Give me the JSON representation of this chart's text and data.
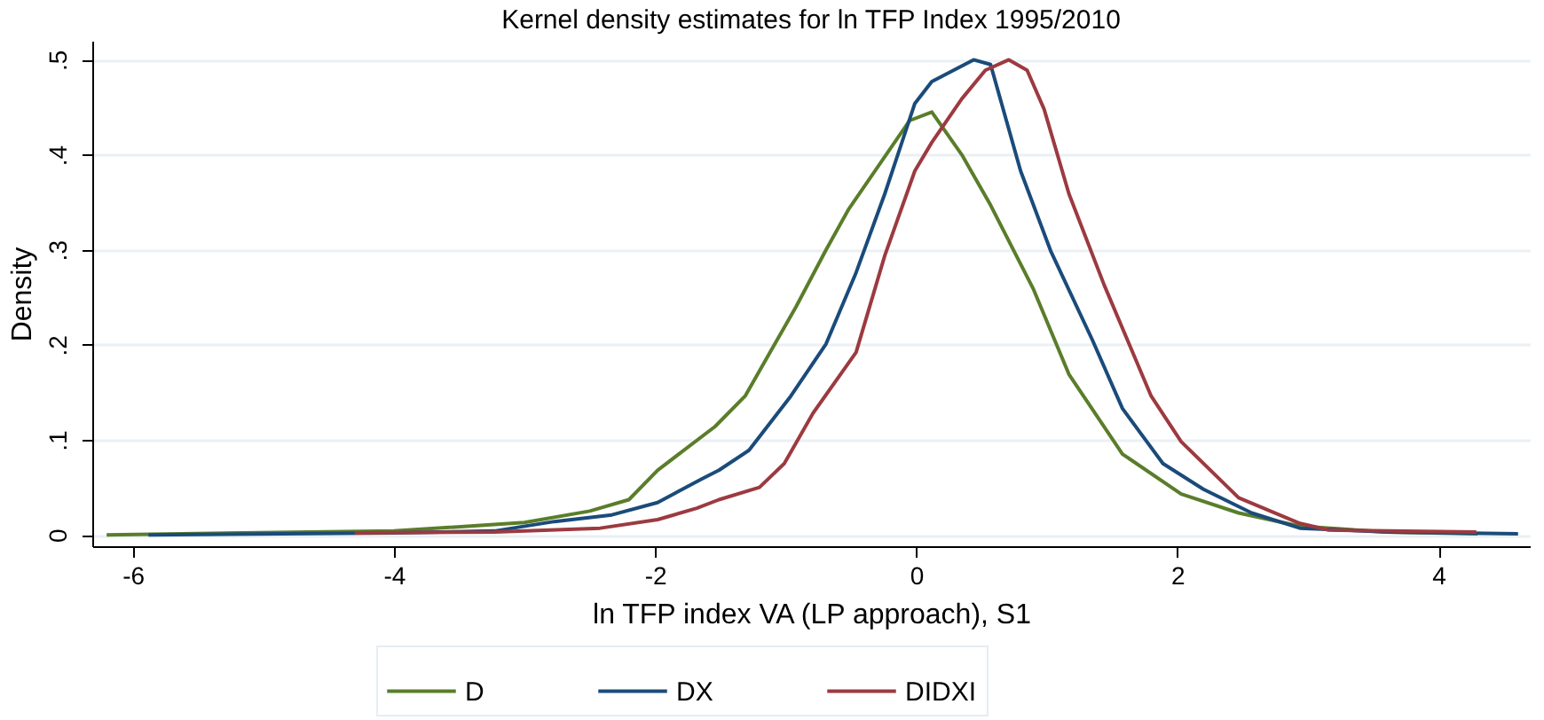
{
  "chart_data": {
    "type": "line",
    "title": "Kernel density estimates for ln TFP Index 1995/2010",
    "xlabel": "ln TFP index VA (LP approach), S1",
    "ylabel": "Density",
    "xlim": [
      -6.31,
      4.7
    ],
    "ylim": [
      -0.012,
      0.52
    ],
    "xticks": [
      -6,
      -4,
      -2,
      0,
      2,
      4
    ],
    "yticks": [
      {
        "value": 0,
        "label": "0"
      },
      {
        "value": 0.1,
        "label": ".1"
      },
      {
        "value": 0.2,
        "label": ".2"
      },
      {
        "value": 0.3,
        "label": ".3"
      },
      {
        "value": 0.4,
        "label": ".4"
      },
      {
        "value": 0.5,
        "label": ".5"
      }
    ],
    "grid": "y",
    "legend": "bottom",
    "marker": "none",
    "line_style": "solid",
    "series": [
      {
        "name": "D",
        "color": "#5a7d2a",
        "x": [
          -6.2,
          -4,
          -3,
          -2.5,
          -2.2,
          -1.98,
          -1.54,
          -1.31,
          -1.14,
          -0.92,
          -0.69,
          -0.52,
          -0.05,
          0.12,
          0.35,
          0.57,
          0.9,
          1.17,
          1.58,
          2.03,
          2.47,
          2.94,
          3.6,
          4.3
        ],
        "values": [
          0,
          0.004,
          0.013,
          0.025,
          0.037,
          0.068,
          0.114,
          0.146,
          0.187,
          0.24,
          0.3,
          0.342,
          0.436,
          0.445,
          0.4,
          0.347,
          0.258,
          0.169,
          0.085,
          0.043,
          0.023,
          0.009,
          0.003,
          0.001
        ]
      },
      {
        "name": "DX",
        "color": "#1a4b7a",
        "x": [
          -5.88,
          -4,
          -3.23,
          -2.77,
          -2.33,
          -1.98,
          -1.64,
          -1.51,
          -1.28,
          -0.96,
          -0.69,
          -0.46,
          -0.24,
          -0.01,
          0.12,
          0.44,
          0.57,
          0.8,
          1.03,
          1.35,
          1.58,
          1.89,
          2.2,
          2.57,
          2.94,
          3.62,
          4.61
        ],
        "values": [
          0,
          0.002,
          0.004,
          0.014,
          0.021,
          0.034,
          0.059,
          0.068,
          0.089,
          0.146,
          0.201,
          0.276,
          0.359,
          0.454,
          0.477,
          0.5,
          0.495,
          0.383,
          0.299,
          0.205,
          0.133,
          0.075,
          0.048,
          0.023,
          0.007,
          0.003,
          0.001
        ]
      },
      {
        "name": "DIDXI",
        "color": "#9c3a40",
        "x": [
          -4.3,
          -3.23,
          -2.42,
          -1.98,
          -1.68,
          -1.51,
          -1.2,
          -1.01,
          -0.79,
          -0.46,
          -0.24,
          -0.01,
          0.12,
          0.35,
          0.53,
          0.71,
          0.85,
          0.98,
          1.17,
          1.44,
          1.8,
          2.03,
          2.47,
          2.94,
          3.16,
          4.29
        ],
        "values": [
          0.002,
          0.003,
          0.007,
          0.016,
          0.028,
          0.037,
          0.05,
          0.075,
          0.128,
          0.192,
          0.294,
          0.383,
          0.413,
          0.459,
          0.489,
          0.5,
          0.489,
          0.448,
          0.359,
          0.263,
          0.146,
          0.098,
          0.039,
          0.012,
          0.005,
          0.003
        ]
      }
    ]
  }
}
